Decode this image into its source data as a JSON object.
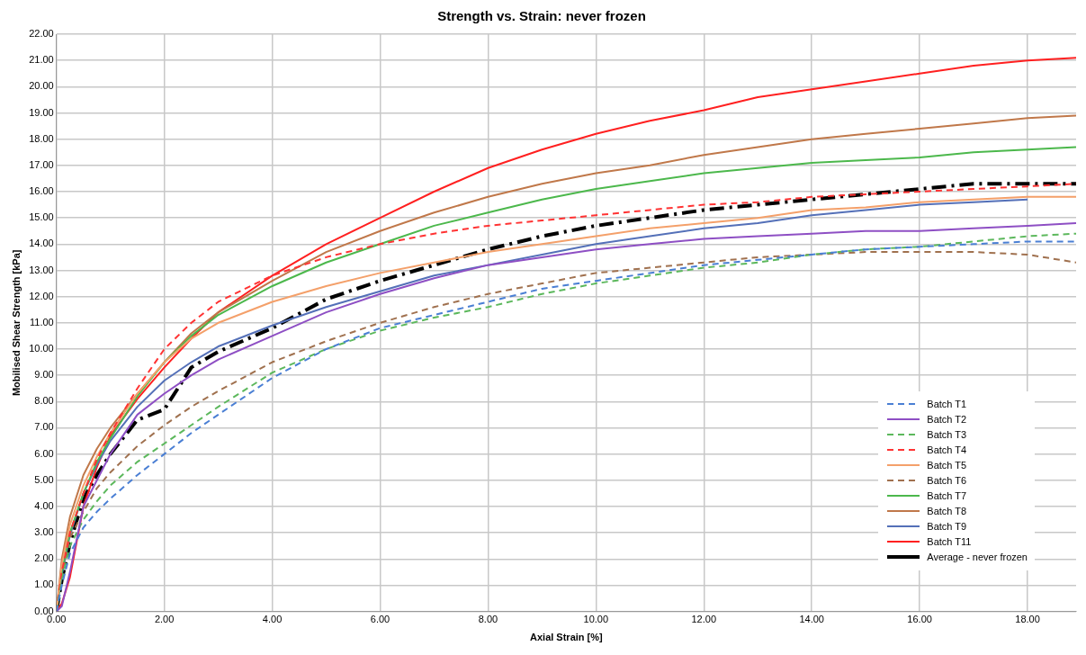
{
  "chart_data": {
    "type": "line",
    "title": "Strength vs. Strain: never frozen",
    "xlabel": "Axial Strain [%]",
    "ylabel": "Mobilised Shear Strength [kPa]",
    "x": [
      0,
      0.1,
      0.25,
      0.5,
      0.75,
      1,
      1.5,
      2,
      2.5,
      3,
      4,
      5,
      6,
      7,
      8,
      9,
      10,
      11,
      12,
      13,
      14,
      15,
      16,
      17,
      18,
      18.9
    ],
    "xlim": [
      0,
      18.9
    ],
    "xticks": [
      {
        "value": 0,
        "label": "0.00"
      },
      {
        "value": 2,
        "label": "2.00"
      },
      {
        "value": 4,
        "label": "4.00"
      },
      {
        "value": 6,
        "label": "6.00"
      },
      {
        "value": 8,
        "label": "8.00"
      },
      {
        "value": 10,
        "label": "10.00"
      },
      {
        "value": 12,
        "label": "12.00"
      },
      {
        "value": 14,
        "label": "14.00"
      },
      {
        "value": 16,
        "label": "16.00"
      },
      {
        "value": 18,
        "label": "18.00"
      }
    ],
    "ylim": [
      0,
      22
    ],
    "yticks": [
      {
        "value": 0,
        "label": "0.00"
      },
      {
        "value": 1,
        "label": "1.00"
      },
      {
        "value": 2,
        "label": "2.00"
      },
      {
        "value": 3,
        "label": "3.00"
      },
      {
        "value": 4,
        "label": "4.00"
      },
      {
        "value": 5,
        "label": "5.00"
      },
      {
        "value": 6,
        "label": "6.00"
      },
      {
        "value": 7,
        "label": "7.00"
      },
      {
        "value": 8,
        "label": "8.00"
      },
      {
        "value": 9,
        "label": "9.00"
      },
      {
        "value": 10,
        "label": "10.00"
      },
      {
        "value": 11,
        "label": "11.00"
      },
      {
        "value": 12,
        "label": "12.00"
      },
      {
        "value": 13,
        "label": "13.00"
      },
      {
        "value": 14,
        "label": "14.00"
      },
      {
        "value": 15,
        "label": "15.00"
      },
      {
        "value": 16,
        "label": "16.00"
      },
      {
        "value": 17,
        "label": "17.00"
      },
      {
        "value": 18,
        "label": "18.00"
      },
      {
        "value": 19,
        "label": "19.00"
      },
      {
        "value": 20,
        "label": "20.00"
      },
      {
        "value": 21,
        "label": "21.00"
      },
      {
        "value": 22,
        "label": "22.00"
      }
    ],
    "grid": true,
    "legend": "bottom right",
    "marker": "none",
    "series": [
      {
        "name": "Batch T1",
        "color": "#4a7fd4",
        "line_style": "dashed",
        "values": [
          0,
          1.0,
          2.2,
          3.2,
          3.8,
          4.3,
          5.2,
          6.0,
          6.8,
          7.5,
          8.9,
          10.0,
          10.8,
          11.3,
          11.8,
          12.3,
          12.6,
          12.9,
          13.2,
          13.4,
          13.6,
          13.8,
          13.9,
          14.0,
          14.1,
          14.1
        ]
      },
      {
        "name": "Batch T2",
        "color": "#8e4fc4",
        "line_style": "solid",
        "values": [
          0,
          0.2,
          1.5,
          4.0,
          5.0,
          6.0,
          7.5,
          8.3,
          9.0,
          9.6,
          10.5,
          11.4,
          12.1,
          12.7,
          13.2,
          13.5,
          13.8,
          14.0,
          14.2,
          14.3,
          14.4,
          14.5,
          14.5,
          14.6,
          14.7,
          14.8
        ]
      },
      {
        "name": "Batch T3",
        "color": "#5cb85c",
        "line_style": "dashed",
        "values": [
          0,
          1.2,
          2.5,
          3.5,
          4.2,
          4.8,
          5.7,
          6.4,
          7.1,
          7.8,
          9.1,
          10.0,
          10.7,
          11.2,
          11.6,
          12.1,
          12.5,
          12.8,
          13.1,
          13.3,
          13.6,
          13.8,
          13.9,
          14.1,
          14.3,
          14.4
        ]
      },
      {
        "name": "Batch T4",
        "color": "#ff3333",
        "line_style": "dashed",
        "values": [
          0,
          1.5,
          3.0,
          4.5,
          5.8,
          6.8,
          8.5,
          10.0,
          11.0,
          11.8,
          12.8,
          13.5,
          14.0,
          14.4,
          14.7,
          14.9,
          15.1,
          15.3,
          15.5,
          15.6,
          15.8,
          15.9,
          16.0,
          16.1,
          16.2,
          16.3
        ]
      },
      {
        "name": "Batch T5",
        "color": "#f4a06a",
        "line_style": "solid",
        "values": [
          0,
          1.8,
          3.3,
          4.8,
          5.9,
          6.8,
          8.3,
          9.5,
          10.4,
          11.0,
          11.8,
          12.4,
          12.9,
          13.3,
          13.7,
          14.0,
          14.3,
          14.6,
          14.8,
          15.0,
          15.3,
          15.4,
          15.6,
          15.7,
          15.8,
          15.8
        ]
      },
      {
        "name": "Batch T6",
        "color": "#a0714f",
        "line_style": "dashed",
        "values": [
          0,
          1.5,
          2.8,
          3.8,
          4.7,
          5.3,
          6.3,
          7.1,
          7.8,
          8.4,
          9.5,
          10.3,
          11.0,
          11.6,
          12.1,
          12.5,
          12.9,
          13.1,
          13.3,
          13.5,
          13.6,
          13.7,
          13.7,
          13.7,
          13.6,
          13.3
        ]
      },
      {
        "name": "Batch T7",
        "color": "#4cb84c",
        "line_style": "solid",
        "values": [
          0,
          1.5,
          3.0,
          4.5,
          5.7,
          6.6,
          8.2,
          9.5,
          10.5,
          11.3,
          12.4,
          13.3,
          14.0,
          14.7,
          15.2,
          15.7,
          16.1,
          16.4,
          16.7,
          16.9,
          17.1,
          17.2,
          17.3,
          17.5,
          17.6,
          17.7
        ]
      },
      {
        "name": "Batch T8",
        "color": "#c0784a",
        "line_style": "solid",
        "values": [
          0,
          2.0,
          3.6,
          5.2,
          6.2,
          7.0,
          8.3,
          9.5,
          10.6,
          11.4,
          12.6,
          13.7,
          14.5,
          15.2,
          15.8,
          16.3,
          16.7,
          17.0,
          17.4,
          17.7,
          18.0,
          18.2,
          18.4,
          18.6,
          18.8,
          18.9
        ]
      },
      {
        "name": "Batch T9",
        "color": "#5470b8",
        "line_style": "solid",
        "values": [
          0,
          1.4,
          2.9,
          4.5,
          5.6,
          6.5,
          7.8,
          8.8,
          9.5,
          10.1,
          10.9,
          11.6,
          12.2,
          12.8,
          13.2,
          13.6,
          14.0,
          14.3,
          14.6,
          14.8,
          15.1,
          15.3,
          15.5,
          15.6,
          15.7,
          null
        ]
      },
      {
        "name": "Batch T11",
        "color": "#ff2020",
        "line_style": "solid",
        "values": [
          0,
          0.3,
          1.3,
          4.0,
          5.5,
          6.7,
          8.1,
          9.3,
          10.4,
          11.4,
          12.8,
          14.0,
          15.0,
          16.0,
          16.9,
          17.6,
          18.2,
          18.7,
          19.1,
          19.6,
          19.9,
          20.2,
          20.5,
          20.8,
          21.0,
          21.1
        ]
      },
      {
        "name": "Average - never frozen",
        "color": "#000000",
        "line_style": "dashed",
        "values": [
          0,
          1.2,
          2.6,
          4.3,
          5.2,
          6.0,
          7.3,
          7.7,
          9.3,
          9.9,
          10.8,
          11.9,
          12.6,
          13.2,
          13.8,
          14.3,
          14.7,
          15.0,
          15.3,
          15.5,
          15.7,
          15.9,
          16.1,
          16.3,
          16.3,
          16.3
        ]
      }
    ]
  }
}
